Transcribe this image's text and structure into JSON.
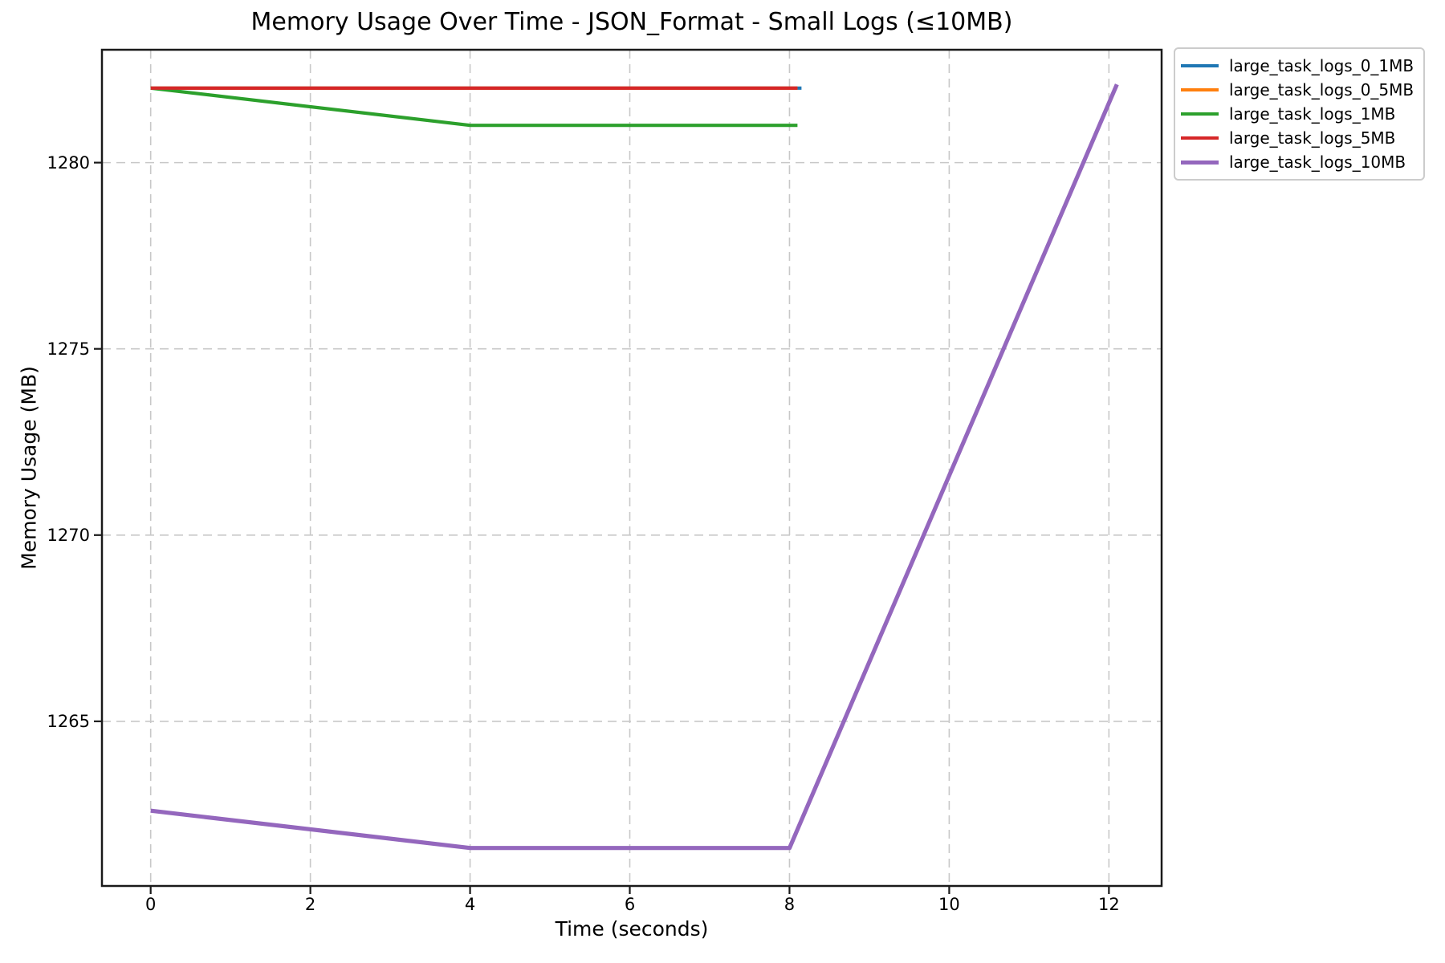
{
  "chart_data": {
    "type": "line",
    "title": "Memory Usage Over Time - JSON_Format - Small Logs (≤10MB)",
    "xlabel": "Time (seconds)",
    "ylabel": "Memory Usage (MB)",
    "xlim": [
      -0.61,
      12.66
    ],
    "ylim": [
      1260.58,
      1283.03
    ],
    "xticks": [
      0,
      2,
      4,
      6,
      8,
      10,
      12
    ],
    "yticks": [
      1265,
      1270,
      1275,
      1280
    ],
    "grid": true,
    "grid_style": "dashed",
    "legend_position": "upper right",
    "axis_color": "#1a1a1a",
    "grid_color": "#c8c8c8",
    "series": [
      {
        "name": "large_task_logs_0_1MB",
        "color": "#1f77b4",
        "linewidth": 4.2,
        "x": [
          0,
          4,
          8.15
        ],
        "y": [
          1282.0,
          1282.0,
          1282.0
        ]
      },
      {
        "name": "large_task_logs_0_5MB",
        "color": "#ff7f0e",
        "linewidth": 4.2,
        "x": [
          0,
          4,
          8.1
        ],
        "y": [
          1282.0,
          1282.0,
          1282.0
        ]
      },
      {
        "name": "large_task_logs_1MB",
        "color": "#2ca02c",
        "linewidth": 4.2,
        "x": [
          0,
          4,
          8.1
        ],
        "y": [
          1282.0,
          1281.0,
          1281.0
        ]
      },
      {
        "name": "large_task_logs_5MB",
        "color": "#d62728",
        "linewidth": 4.2,
        "x": [
          0,
          4,
          8.1
        ],
        "y": [
          1282.0,
          1282.0,
          1282.0
        ]
      },
      {
        "name": "large_task_logs_10MB",
        "color": "#9467bd",
        "linewidth": 5.2,
        "x": [
          0,
          4,
          8,
          12.1
        ],
        "y": [
          1262.6,
          1261.6,
          1261.6,
          1282.1
        ]
      }
    ]
  }
}
